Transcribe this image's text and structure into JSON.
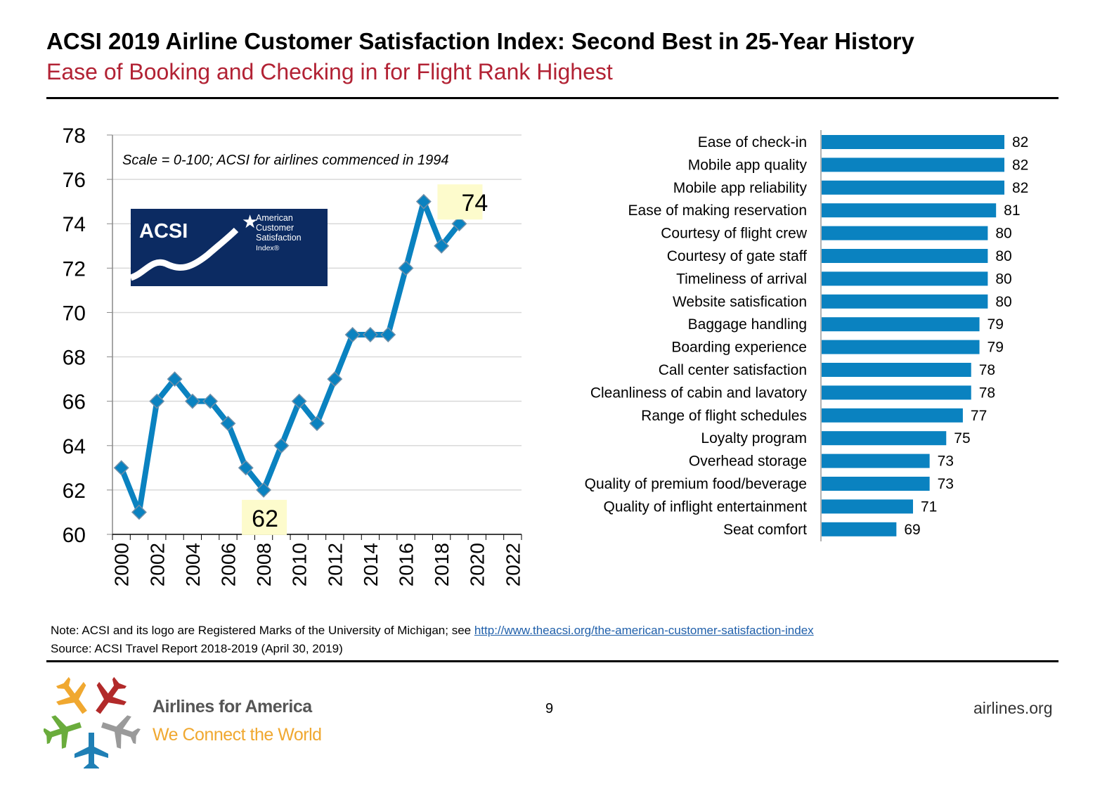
{
  "title": "ACSI 2019 Airline Customer Satisfaction Index: Second Best in 25-Year History",
  "subtitle": "Ease of Booking and Checking in for Flight Rank Highest",
  "note_prefix": "Note: ACSI and its logo are Registered Marks of the University of Michigan; see ",
  "note_link": "http://www.theacsi.org/the-american-customer-satisfaction-index",
  "source": "Source: ACSI Travel Report 2018-2019 (April 30, 2019)",
  "page_number": "9",
  "site": "airlines.org",
  "footer_logo": {
    "name": "Airlines for America",
    "tagline": "We Connect the World",
    "colors": [
      "#f0a830",
      "#b22a2a",
      "#6aac3c",
      "#9a9a9a",
      "#1f7fb5"
    ]
  },
  "acsi_logo": {
    "text": "ACSI",
    "lines": [
      "American",
      "Customer",
      "Satisfaction",
      "Index®"
    ],
    "bg": "#0c2b62"
  },
  "chart_data": [
    {
      "type": "line",
      "annotation": "Scale = 0-100; ACSI for airlines commenced in 1994",
      "x": [
        2000,
        2001,
        2002,
        2003,
        2004,
        2005,
        2006,
        2007,
        2008,
        2009,
        2010,
        2011,
        2012,
        2013,
        2014,
        2015,
        2016,
        2017,
        2018,
        2019
      ],
      "values": [
        63,
        61,
        66,
        67,
        66,
        66,
        65,
        63,
        62,
        64,
        66,
        65,
        67,
        69,
        69,
        69,
        72,
        75,
        73,
        74
      ],
      "xlim": [
        2000,
        2022
      ],
      "xticks": [
        "2000",
        "2002",
        "2004",
        "2006",
        "2008",
        "2010",
        "2012",
        "2014",
        "2016",
        "2018",
        "2020",
        "2022"
      ],
      "ylim": [
        60,
        78
      ],
      "yticks": [
        "60",
        "62",
        "64",
        "66",
        "68",
        "70",
        "72",
        "74",
        "76",
        "78"
      ],
      "callouts": [
        {
          "x": 2008,
          "label": "62"
        },
        {
          "x": 2019,
          "label": "74"
        }
      ],
      "grid": true,
      "color": "#0a82c0",
      "callout_bg": "#fdfbcc"
    },
    {
      "type": "bar",
      "orientation": "horizontal",
      "categories": [
        "Ease of check-in",
        "Mobile app quality",
        "Mobile app reliability",
        "Ease of making reservation",
        "Courtesy of flight crew",
        "Courtesy of gate staff",
        "Timeliness of arrival",
        "Website satisfication",
        "Baggage handling",
        "Boarding experience",
        "Call center satisfaction",
        "Cleanliness of cabin and lavatory",
        "Range of flight schedules",
        "Loyalty program",
        "Overhead storage",
        "Quality of premium food/beverage",
        "Quality of inflight entertainment",
        "Seat comfort"
      ],
      "values": [
        82,
        82,
        82,
        81,
        80,
        80,
        80,
        80,
        79,
        79,
        78,
        78,
        77,
        75,
        73,
        73,
        71,
        69
      ],
      "xlim": [
        60,
        85
      ],
      "color": "#0a82c0"
    }
  ]
}
